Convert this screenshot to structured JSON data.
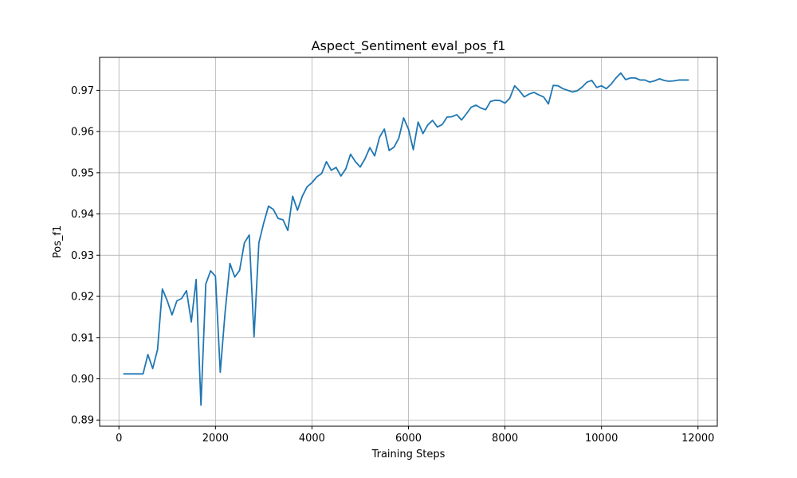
{
  "chart_data": {
    "type": "line",
    "title": "Aspect_Sentiment eval_pos_f1",
    "xlabel": "Training Steps",
    "ylabel": "Pos_f1",
    "xlim": [
      -400,
      12400
    ],
    "ylim": [
      0.8885,
      0.978
    ],
    "xticks": [
      0,
      2000,
      4000,
      6000,
      8000,
      10000,
      12000
    ],
    "xtick_labels": [
      "0",
      "2000",
      "4000",
      "6000",
      "8000",
      "10000",
      "12000"
    ],
    "yticks": [
      0.89,
      0.9,
      0.91,
      0.92,
      0.93,
      0.94,
      0.95,
      0.96,
      0.97
    ],
    "ytick_labels": [
      "0.89",
      "0.90",
      "0.91",
      "0.92",
      "0.93",
      "0.94",
      "0.95",
      "0.96",
      "0.97"
    ],
    "grid": true,
    "series": [
      {
        "color": "#1f77b4",
        "x": [
          100,
          200,
          300,
          400,
          500,
          600,
          700,
          800,
          900,
          1000,
          1100,
          1200,
          1300,
          1400,
          1500,
          1600,
          1700,
          1800,
          1900,
          2000,
          2100,
          2200,
          2300,
          2400,
          2500,
          2600,
          2700,
          2800,
          2900,
          3000,
          3100,
          3200,
          3300,
          3400,
          3500,
          3600,
          3700,
          3800,
          3900,
          4000,
          4100,
          4200,
          4300,
          4400,
          4500,
          4600,
          4700,
          4800,
          4900,
          5000,
          5100,
          5200,
          5300,
          5400,
          5500,
          5600,
          5700,
          5800,
          5900,
          6000,
          6100,
          6200,
          6300,
          6400,
          6500,
          6600,
          6700,
          6800,
          6900,
          7000,
          7100,
          7200,
          7300,
          7400,
          7500,
          7600,
          7700,
          7800,
          7900,
          8000,
          8100,
          8200,
          8300,
          8400,
          8500,
          8600,
          8700,
          8800,
          8900,
          9000,
          9100,
          9200,
          9300,
          9400,
          9500,
          9600,
          9700,
          9800,
          9900,
          10000,
          10100,
          10200,
          10300,
          10400,
          10500,
          10600,
          10700,
          10800,
          10900,
          11000,
          11100,
          11200,
          11300,
          11400,
          11500,
          11600,
          11700,
          11800
        ],
        "y": [
          0.9012,
          0.9012,
          0.9012,
          0.9012,
          0.9012,
          0.9059,
          0.9025,
          0.9071,
          0.9218,
          0.919,
          0.9155,
          0.9189,
          0.9195,
          0.9214,
          0.9138,
          0.9241,
          0.8936,
          0.923,
          0.9262,
          0.9249,
          0.9016,
          0.9161,
          0.928,
          0.9247,
          0.9263,
          0.933,
          0.9349,
          0.9102,
          0.933,
          0.9378,
          0.9419,
          0.9411,
          0.9389,
          0.9386,
          0.936,
          0.9443,
          0.9409,
          0.9443,
          0.9466,
          0.9476,
          0.949,
          0.9498,
          0.9527,
          0.9506,
          0.9513,
          0.9492,
          0.9509,
          0.9545,
          0.9527,
          0.9514,
          0.9534,
          0.9561,
          0.9541,
          0.9586,
          0.9606,
          0.9554,
          0.9562,
          0.9584,
          0.9633,
          0.9606,
          0.9556,
          0.9623,
          0.9595,
          0.9616,
          0.9627,
          0.9611,
          0.9617,
          0.9635,
          0.9636,
          0.9641,
          0.9628,
          0.9643,
          0.9659,
          0.9664,
          0.9657,
          0.9653,
          0.9673,
          0.9676,
          0.9675,
          0.9669,
          0.9681,
          0.9711,
          0.9699,
          0.9684,
          0.9691,
          0.9695,
          0.9689,
          0.9684,
          0.9667,
          0.9712,
          0.9711,
          0.9704,
          0.97,
          0.9696,
          0.9699,
          0.9708,
          0.972,
          0.9724,
          0.9707,
          0.9711,
          0.9704,
          0.9715,
          0.973,
          0.9742,
          0.9726,
          0.973,
          0.973,
          0.9725,
          0.9725,
          0.972,
          0.9723,
          0.9728,
          0.9724,
          0.9722,
          0.9723,
          0.9725,
          0.9725,
          0.9725
        ]
      }
    ]
  }
}
